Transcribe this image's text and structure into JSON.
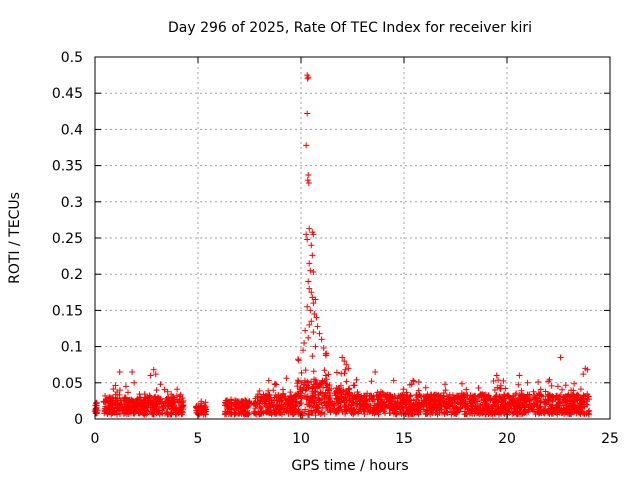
{
  "chart_data": {
    "type": "scatter",
    "title": "Day 296 of 2025, Rate Of TEC Index for receiver kiri",
    "xlabel": "GPS time / hours",
    "ylabel": "ROTI / TECUs",
    "xlim": [
      0,
      25
    ],
    "ylim": [
      0,
      0.5
    ],
    "xticks": [
      0,
      5,
      10,
      15,
      20,
      25
    ],
    "yticks": [
      0,
      0.05,
      0.1,
      0.15,
      0.2,
      0.25,
      0.3,
      0.35,
      0.4,
      0.45,
      0.5
    ],
    "xtick_labels": [
      "0",
      "5",
      "10",
      "15",
      "20",
      "25"
    ],
    "ytick_labels": [
      "0",
      "0.05",
      "0.1",
      "0.15",
      "0.2",
      "0.25",
      "0.3",
      "0.35",
      "0.4",
      "0.45",
      "0.5"
    ],
    "grid": true,
    "marker": "+",
    "color": "#ff0000",
    "series": [
      {
        "name": "ROTI",
        "segments": [
          {
            "x_start": 0.0,
            "x_end": 0.15,
            "baseline": 0.015,
            "spread": 0.008
          },
          {
            "x_start": 0.4,
            "x_end": 4.3,
            "baseline": 0.018,
            "spread": 0.012
          },
          {
            "x_start": 4.9,
            "x_end": 5.4,
            "baseline": 0.012,
            "spread": 0.006
          },
          {
            "x_start": 6.3,
            "x_end": 7.5,
            "baseline": 0.016,
            "spread": 0.01
          },
          {
            "x_start": 7.7,
            "x_end": 9.8,
            "baseline": 0.02,
            "spread": 0.014
          },
          {
            "x_start": 9.8,
            "x_end": 11.3,
            "baseline": 0.03,
            "spread": 0.025
          },
          {
            "x_start": 11.3,
            "x_end": 12.4,
            "baseline": 0.025,
            "spread": 0.018
          },
          {
            "x_start": 12.4,
            "x_end": 24.0,
            "baseline": 0.02,
            "spread": 0.014
          }
        ],
        "highlights": [
          {
            "x": 10.3,
            "y": 0.475
          },
          {
            "x": 10.32,
            "y": 0.47
          },
          {
            "x": 10.35,
            "y": 0.472
          },
          {
            "x": 10.3,
            "y": 0.422
          },
          {
            "x": 10.25,
            "y": 0.378
          },
          {
            "x": 10.35,
            "y": 0.337
          },
          {
            "x": 10.33,
            "y": 0.33
          },
          {
            "x": 10.38,
            "y": 0.326
          },
          {
            "x": 10.4,
            "y": 0.263
          },
          {
            "x": 10.25,
            "y": 0.255
          },
          {
            "x": 10.3,
            "y": 0.248
          },
          {
            "x": 10.55,
            "y": 0.258
          },
          {
            "x": 10.6,
            "y": 0.255
          },
          {
            "x": 10.5,
            "y": 0.24
          },
          {
            "x": 10.55,
            "y": 0.226
          },
          {
            "x": 10.4,
            "y": 0.215
          },
          {
            "x": 10.45,
            "y": 0.205
          },
          {
            "x": 10.6,
            "y": 0.203
          },
          {
            "x": 10.35,
            "y": 0.19
          },
          {
            "x": 10.4,
            "y": 0.18
          },
          {
            "x": 10.5,
            "y": 0.175
          },
          {
            "x": 10.55,
            "y": 0.168
          },
          {
            "x": 10.6,
            "y": 0.16
          },
          {
            "x": 10.7,
            "y": 0.165
          },
          {
            "x": 10.3,
            "y": 0.155
          },
          {
            "x": 10.45,
            "y": 0.15
          },
          {
            "x": 10.65,
            "y": 0.145
          },
          {
            "x": 10.75,
            "y": 0.14
          },
          {
            "x": 10.5,
            "y": 0.135
          },
          {
            "x": 10.4,
            "y": 0.13
          },
          {
            "x": 10.8,
            "y": 0.128
          },
          {
            "x": 10.2,
            "y": 0.122
          },
          {
            "x": 10.6,
            "y": 0.12
          },
          {
            "x": 10.9,
            "y": 0.118
          },
          {
            "x": 10.35,
            "y": 0.112
          },
          {
            "x": 11.0,
            "y": 0.11
          },
          {
            "x": 10.15,
            "y": 0.105
          },
          {
            "x": 10.7,
            "y": 0.1
          },
          {
            "x": 11.1,
            "y": 0.098
          },
          {
            "x": 10.1,
            "y": 0.095
          },
          {
            "x": 11.2,
            "y": 0.09
          },
          {
            "x": 12.0,
            "y": 0.085
          },
          {
            "x": 12.1,
            "y": 0.08
          },
          {
            "x": 12.2,
            "y": 0.075
          },
          {
            "x": 12.3,
            "y": 0.07
          },
          {
            "x": 12.15,
            "y": 0.068
          },
          {
            "x": 1.2,
            "y": 0.065
          },
          {
            "x": 1.8,
            "y": 0.065
          },
          {
            "x": 2.7,
            "y": 0.06
          },
          {
            "x": 2.85,
            "y": 0.068
          },
          {
            "x": 2.95,
            "y": 0.062
          },
          {
            "x": 1.5,
            "y": 0.045
          },
          {
            "x": 1.9,
            "y": 0.05
          },
          {
            "x": 13.6,
            "y": 0.065
          },
          {
            "x": 14.5,
            "y": 0.053
          },
          {
            "x": 19.5,
            "y": 0.06
          },
          {
            "x": 20.6,
            "y": 0.06
          },
          {
            "x": 22.6,
            "y": 0.085
          },
          {
            "x": 23.8,
            "y": 0.07
          },
          {
            "x": 23.9,
            "y": 0.068
          },
          {
            "x": 23.7,
            "y": 0.062
          },
          {
            "x": 21.0,
            "y": 0.05
          },
          {
            "x": 22.0,
            "y": 0.052
          }
        ]
      }
    ]
  }
}
